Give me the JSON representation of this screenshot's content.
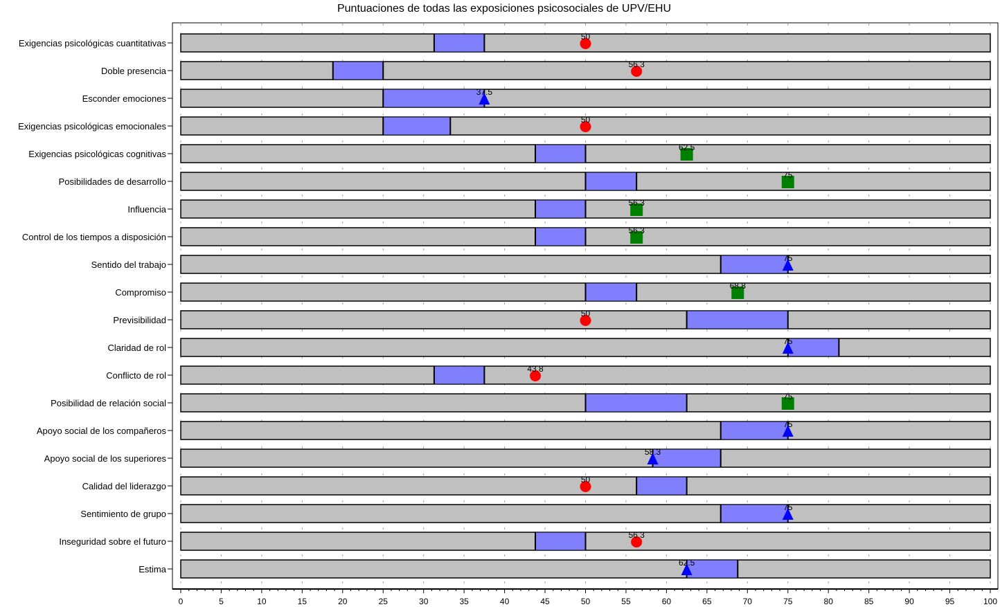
{
  "chart_data": {
    "type": "bar",
    "title": "Puntuaciones de todas las exposiciones psicosociales de UPV/EHU",
    "xlim": [
      0,
      100
    ],
    "x_ticks": [
      0,
      5,
      10,
      15,
      20,
      25,
      30,
      35,
      40,
      45,
      50,
      55,
      60,
      65,
      70,
      75,
      80,
      85,
      90,
      95,
      100
    ],
    "grid": true,
    "colors": {
      "background_bar": "#c0c0c0",
      "range_bar": "#8080ff",
      "red": "#ff0000",
      "green": "#008000",
      "blue": "#0000ff"
    },
    "categories": [
      "Exigencias psicológicas cuantitativas",
      "Doble presencia",
      "Esconder emociones",
      "Exigencias psicológicas emocionales",
      "Exigencias psicológicas cognitivas",
      "Posibilidades de desarrollo",
      "Influencia",
      "Control de los tiempos a disposición",
      "Sentido del trabajo",
      "Compromiso",
      "Previsibilidad",
      "Claridad de rol",
      "Conflicto de rol",
      "Posibilidad de relación social",
      "Apoyo social de los compañeros",
      "Apoyo social de los superiores",
      "Calidad del liderazgo",
      "Sentimiento de grupo",
      "Inseguridad sobre el futuro",
      "Estima"
    ],
    "ranges": [
      [
        31.3,
        37.5
      ],
      [
        18.8,
        25
      ],
      [
        25,
        37.5
      ],
      [
        25,
        33.3
      ],
      [
        43.8,
        50
      ],
      [
        50,
        56.3
      ],
      [
        43.8,
        50
      ],
      [
        43.8,
        50
      ],
      [
        66.7,
        75
      ],
      [
        50,
        56.3
      ],
      [
        62.5,
        75
      ],
      [
        75,
        81.3
      ],
      [
        31.3,
        37.5
      ],
      [
        50,
        62.5
      ],
      [
        66.7,
        75
      ],
      [
        58.3,
        66.7
      ],
      [
        56.3,
        62.5
      ],
      [
        66.7,
        75
      ],
      [
        43.8,
        50
      ],
      [
        62.5,
        68.8
      ]
    ],
    "scores": [
      {
        "value": 50,
        "label": "50",
        "marker": "circle",
        "color": "red"
      },
      {
        "value": 56.3,
        "label": "56.3",
        "marker": "circle",
        "color": "red"
      },
      {
        "value": 37.5,
        "label": "37.5",
        "marker": "triangle",
        "color": "blue"
      },
      {
        "value": 50,
        "label": "50",
        "marker": "circle",
        "color": "red"
      },
      {
        "value": 62.5,
        "label": "62.5",
        "marker": "square",
        "color": "green"
      },
      {
        "value": 75,
        "label": "75",
        "marker": "square",
        "color": "green"
      },
      {
        "value": 56.3,
        "label": "56.3",
        "marker": "square",
        "color": "green"
      },
      {
        "value": 56.3,
        "label": "56.3",
        "marker": "square",
        "color": "green"
      },
      {
        "value": 75,
        "label": "75",
        "marker": "triangle",
        "color": "blue"
      },
      {
        "value": 68.8,
        "label": "68.8",
        "marker": "square",
        "color": "green"
      },
      {
        "value": 50,
        "label": "50",
        "marker": "circle",
        "color": "red"
      },
      {
        "value": 75,
        "label": "75",
        "marker": "triangle",
        "color": "blue"
      },
      {
        "value": 43.8,
        "label": "43.8",
        "marker": "circle",
        "color": "red"
      },
      {
        "value": 75,
        "label": "75",
        "marker": "square",
        "color": "green"
      },
      {
        "value": 75,
        "label": "75",
        "marker": "triangle",
        "color": "blue"
      },
      {
        "value": 58.3,
        "label": "58.3",
        "marker": "triangle",
        "color": "blue"
      },
      {
        "value": 50,
        "label": "50",
        "marker": "circle",
        "color": "red"
      },
      {
        "value": 75,
        "label": "75",
        "marker": "triangle",
        "color": "blue"
      },
      {
        "value": 56.3,
        "label": "56.3",
        "marker": "circle",
        "color": "red"
      },
      {
        "value": 62.5,
        "label": "62.5",
        "marker": "triangle",
        "color": "blue"
      }
    ]
  }
}
